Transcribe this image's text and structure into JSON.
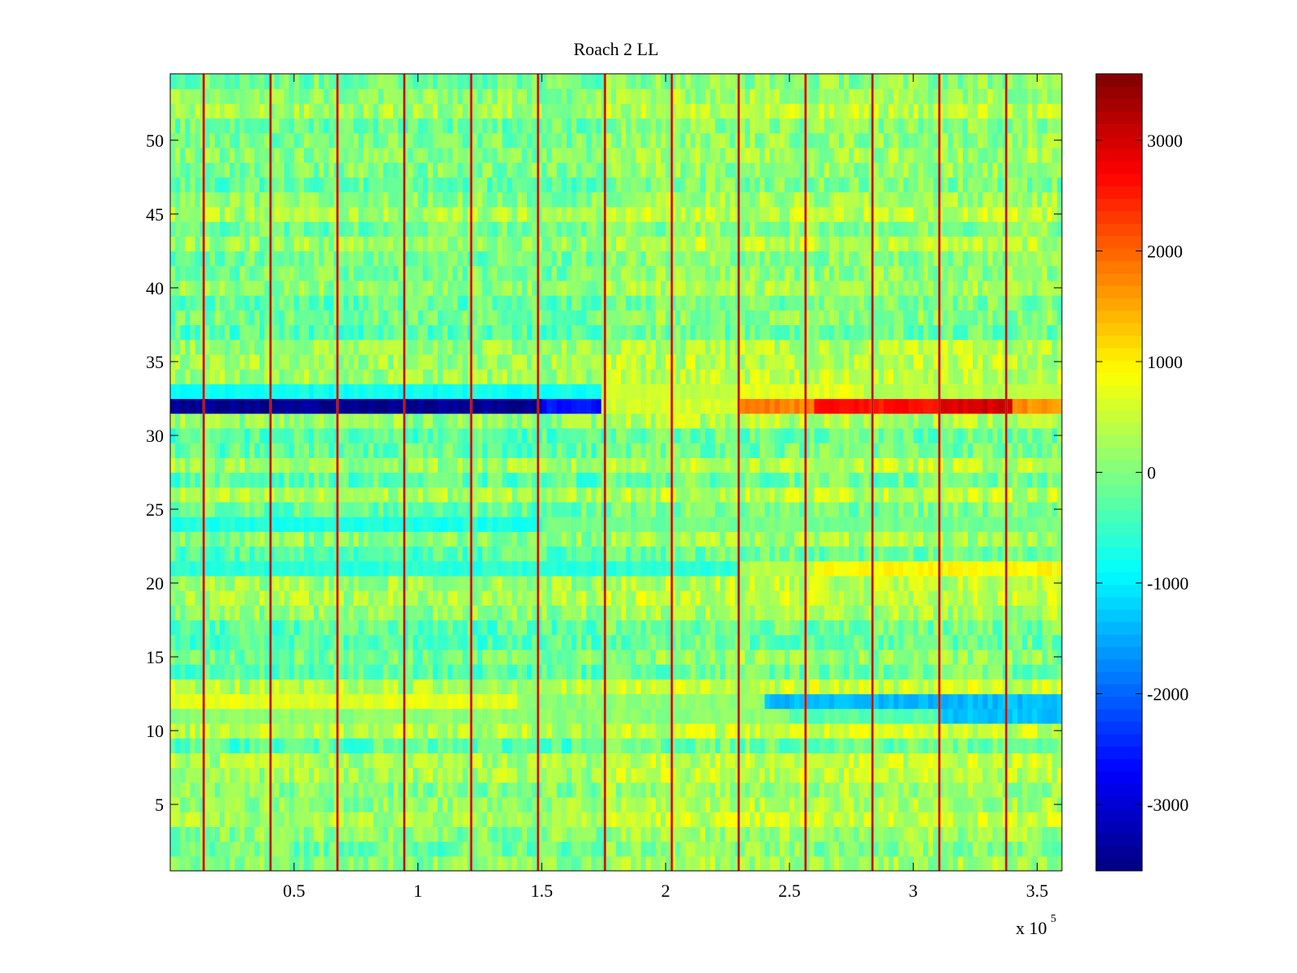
{
  "chart_data": {
    "type": "heatmap",
    "title": "Roach 2 LL",
    "xlabel": "",
    "ylabel": "",
    "x_multiplier_label": "x 10",
    "x_multiplier_exponent": "5",
    "xlim": [
      0,
      3.6
    ],
    "ylim": [
      0.5,
      54.5
    ],
    "rows": 54,
    "x_ticks": [
      0.5,
      1,
      1.5,
      2,
      2.5,
      3,
      3.5
    ],
    "x_tick_labels": [
      "0.5",
      "1",
      "1.5",
      "2",
      "2.5",
      "3",
      "3.5"
    ],
    "y_ticks": [
      5,
      10,
      15,
      20,
      25,
      30,
      35,
      40,
      45,
      50
    ],
    "y_tick_labels": [
      "5",
      "10",
      "15",
      "20",
      "25",
      "30",
      "35",
      "40",
      "45",
      "50"
    ],
    "colorbar": {
      "range": [
        -3600,
        3600
      ],
      "ticks": [
        3000,
        2000,
        1000,
        0,
        -1000,
        -2000,
        -3000
      ],
      "tick_labels": [
        "3000",
        "2000",
        "1000",
        "0",
        "-1000",
        "-2000",
        "-3000"
      ],
      "colormap": "jet"
    },
    "vertical_spike_lines_x": [
      0.135,
      0.405,
      0.675,
      0.945,
      1.215,
      1.485,
      1.755,
      2.025,
      2.295,
      2.565,
      2.835,
      3.105,
      3.375
    ],
    "row_profiles": [
      {
        "row": 32,
        "segments": [
          [
            0,
            1.5,
            -3500
          ],
          [
            1.5,
            1.75,
            -2600
          ],
          [
            1.75,
            2.3,
            600
          ],
          [
            2.3,
            2.6,
            1800
          ],
          [
            2.6,
            3.1,
            2600
          ],
          [
            3.1,
            3.4,
            3000
          ],
          [
            3.4,
            3.6,
            1700
          ]
        ]
      },
      {
        "row": 33,
        "segments": [
          [
            0,
            1.75,
            -800
          ],
          [
            1.75,
            2.3,
            500
          ],
          [
            2.3,
            2.8,
            700
          ],
          [
            2.8,
            3.6,
            400
          ]
        ]
      },
      {
        "row": 12,
        "segments": [
          [
            0,
            1.4,
            700
          ],
          [
            1.4,
            2.4,
            100
          ],
          [
            2.4,
            3.6,
            -1400
          ]
        ]
      },
      {
        "row": 11,
        "segments": [
          [
            0,
            2.5,
            100
          ],
          [
            2.5,
            3.1,
            -300
          ],
          [
            3.1,
            3.6,
            -1300
          ]
        ]
      },
      {
        "row": 21,
        "segments": [
          [
            0,
            2.3,
            -600
          ],
          [
            2.3,
            2.6,
            400
          ],
          [
            2.6,
            3.6,
            900
          ]
        ]
      },
      {
        "row": 24,
        "segments": [
          [
            0,
            1.5,
            -700
          ],
          [
            1.5,
            3.6,
            -100
          ]
        ]
      }
    ]
  }
}
